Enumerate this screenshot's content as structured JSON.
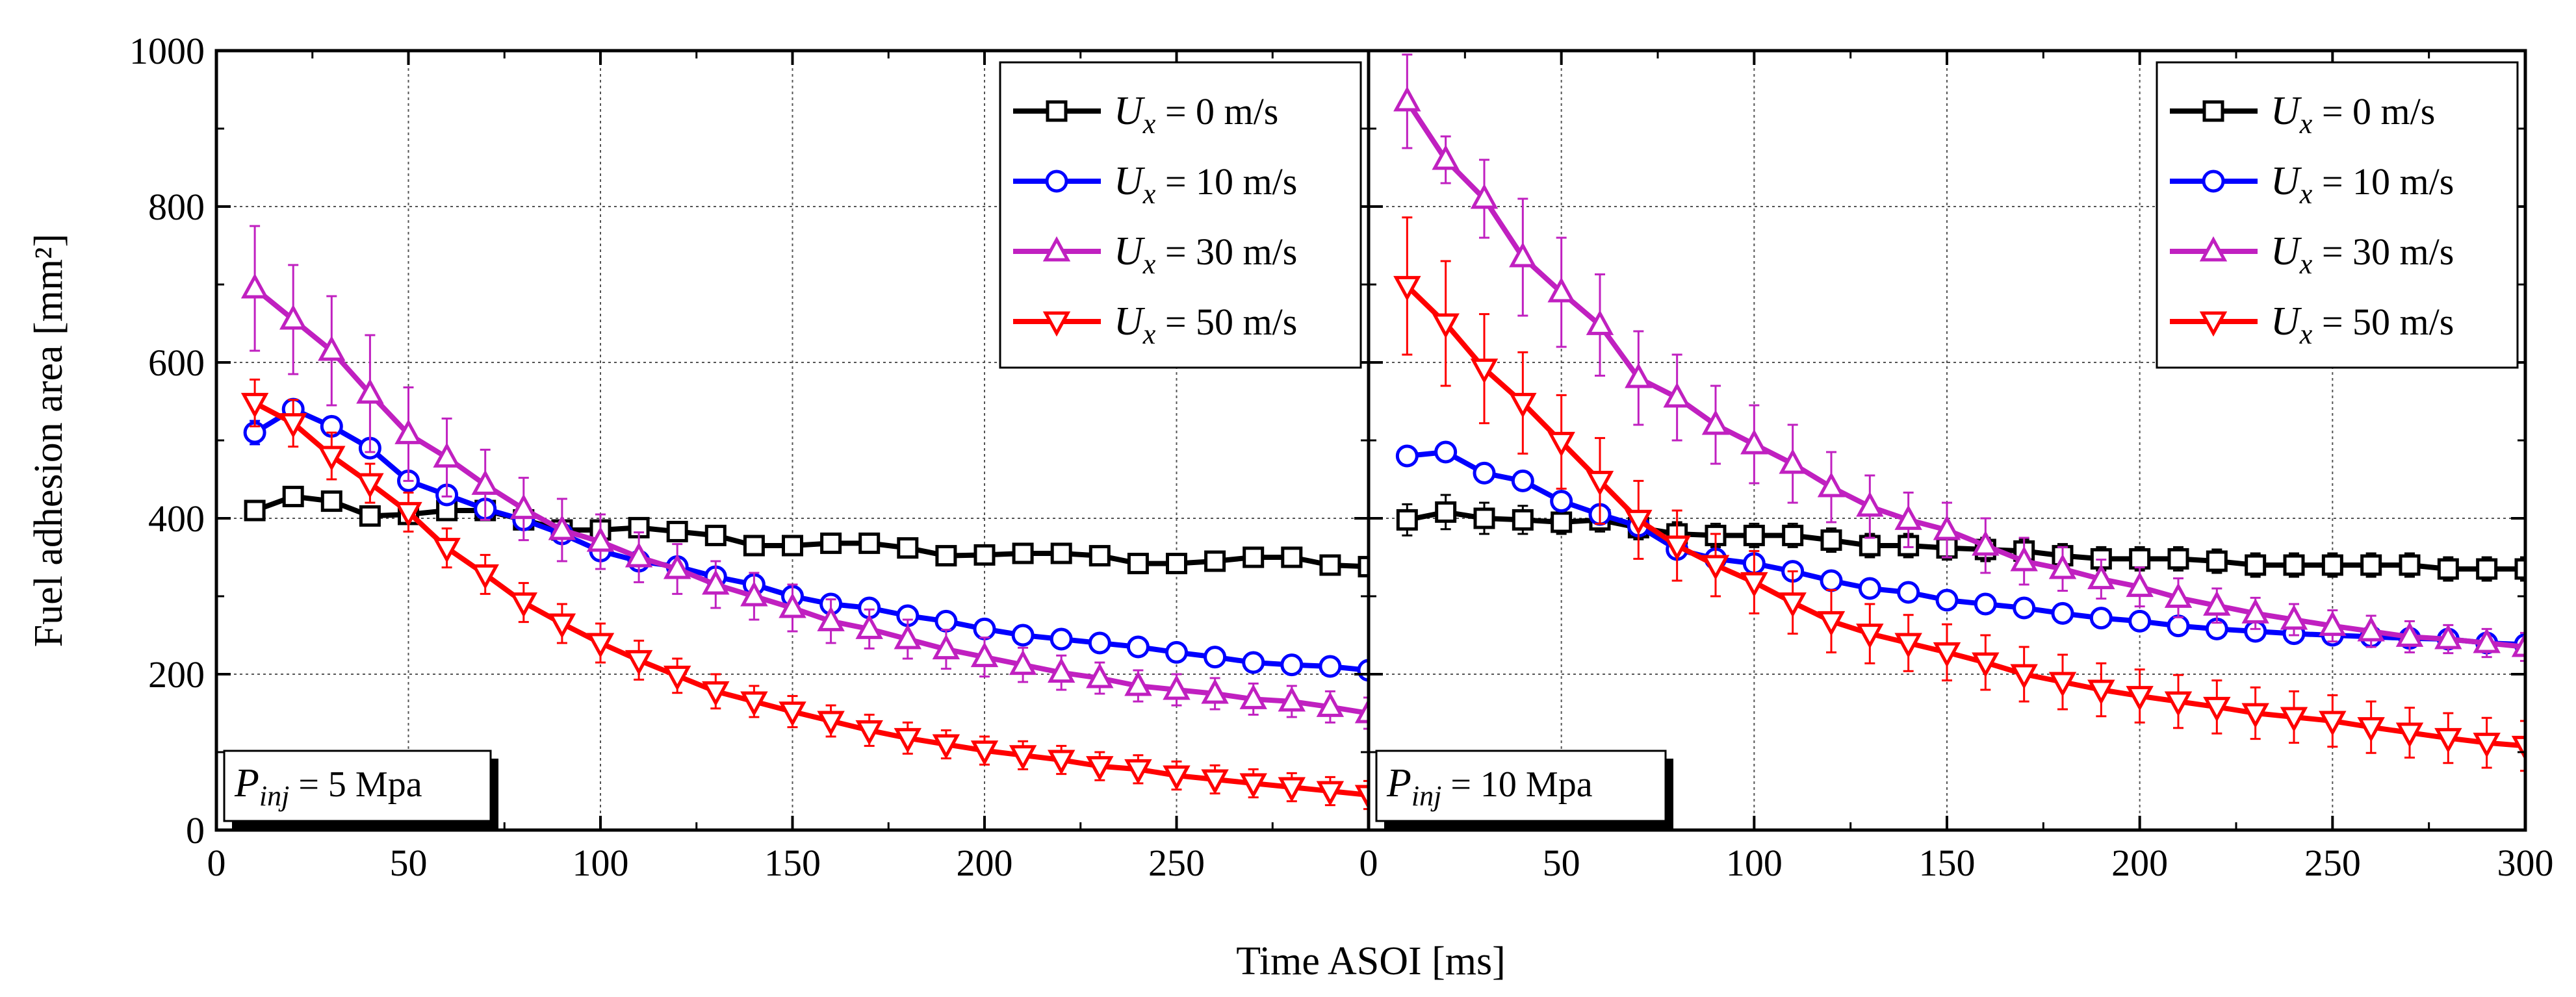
{
  "chart_data": {
    "type": "line",
    "xlabel": "Time ASOI [ms]",
    "ylabel": "Fuel adhesion area [mm²]",
    "ylim": [
      0,
      1000
    ],
    "yticks": [
      "0",
      "200",
      "400",
      "600",
      "800",
      "1000"
    ],
    "grid": true,
    "legend_placement": "top-right",
    "legend": [
      {
        "sym": "U",
        "sub": "x",
        "text": " =   0 m/s",
        "color": "#000000",
        "marker": "square"
      },
      {
        "sym": "U",
        "sub": "x",
        "text": " =  10 m/s",
        "color": "#0000ff",
        "marker": "circle"
      },
      {
        "sym": "U",
        "sub": "x",
        "text": " =  30 m/s",
        "color": "#c020c0",
        "marker": "triangle-up"
      },
      {
        "sym": "U",
        "sub": "x",
        "text": " =  50 m/s",
        "color": "#ff0000",
        "marker": "triangle-down"
      }
    ],
    "panels": [
      {
        "label": {
          "sym": "P",
          "sub": "inj",
          "text": " = 5 Mpa"
        },
        "xlim": [
          0,
          300
        ],
        "xticks": [
          "0",
          "50",
          "100",
          "150",
          "200",
          "250"
        ],
        "x": [
          10,
          20,
          30,
          40,
          50,
          60,
          70,
          80,
          90,
          100,
          110,
          120,
          130,
          140,
          150,
          160,
          170,
          180,
          190,
          200,
          210,
          220,
          230,
          240,
          250,
          260,
          270,
          280,
          290,
          300
        ],
        "series": [
          {
            "values": [
              410,
              428,
              422,
              403,
              405,
              410,
              410,
              398,
              385,
              385,
              388,
              383,
              378,
              365,
              365,
              368,
              368,
              362,
              352,
              353,
              355,
              355,
              352,
              342,
              342,
              345,
              350,
              350,
              340,
              338
            ],
            "errors": [
              10,
              10,
              12,
              10,
              8,
              8,
              10,
              8,
              8,
              8,
              8,
              8,
              12,
              8,
              8,
              8,
              8,
              10,
              6,
              6,
              6,
              6,
              6,
              6,
              6,
              6,
              8,
              8,
              8,
              8
            ]
          },
          {
            "values": [
              510,
              540,
              518,
              490,
              448,
              430,
              412,
              398,
              380,
              358,
              345,
              338,
              325,
              315,
              300,
              290,
              285,
              275,
              268,
              258,
              250,
              245,
              240,
              235,
              228,
              222,
              215,
              212,
              210,
              205
            ],
            "errors": [
              15,
              10,
              12,
              10,
              8,
              8,
              8,
              8,
              8,
              8,
              8,
              8,
              8,
              6,
              6,
              6,
              6,
              6,
              6,
              6,
              6,
              6,
              6,
              6,
              6,
              6,
              6,
              6,
              6,
              6
            ]
          },
          {
            "values": [
              695,
              655,
              615,
              560,
              508,
              478,
              443,
              412,
              385,
              370,
              350,
              335,
              315,
              300,
              285,
              268,
              258,
              245,
              232,
              222,
              212,
              202,
              195,
              185,
              180,
              175,
              168,
              165,
              158,
              150
            ],
            "errors": [
              80,
              70,
              70,
              75,
              60,
              50,
              45,
              40,
              40,
              35,
              32,
              32,
              30,
              30,
              30,
              28,
              25,
              25,
              25,
              25,
              22,
              22,
              20,
              20,
              20,
              20,
              20,
              20,
              20,
              20
            ]
          },
          {
            "values": [
              548,
              522,
              480,
              445,
              408,
              362,
              328,
              292,
              265,
              240,
              218,
              198,
              178,
              165,
              152,
              140,
              128,
              118,
              110,
              102,
              96,
              90,
              82,
              78,
              70,
              65,
              60,
              55,
              50,
              45
            ],
            "errors": [
              30,
              30,
              30,
              25,
              25,
              25,
              25,
              25,
              25,
              25,
              25,
              22,
              22,
              20,
              20,
              20,
              20,
              20,
              18,
              18,
              18,
              18,
              18,
              18,
              18,
              18,
              18,
              18,
              18,
              18
            ]
          }
        ]
      },
      {
        "label": {
          "sym": "P",
          "sub": "inj",
          "text": " = 10 Mpa"
        },
        "xlim": [
          0,
          300
        ],
        "xticks": [
          "0",
          "50",
          "100",
          "150",
          "200",
          "250",
          "300"
        ],
        "x": [
          10,
          20,
          30,
          40,
          50,
          60,
          70,
          80,
          90,
          100,
          110,
          120,
          130,
          140,
          150,
          160,
          170,
          180,
          190,
          200,
          210,
          220,
          230,
          240,
          250,
          260,
          270,
          280,
          290,
          300
        ],
        "series": [
          {
            "values": [
              398,
              408,
              400,
              398,
              395,
              398,
              388,
              380,
              378,
              378,
              378,
              372,
              365,
              365,
              362,
              360,
              358,
              352,
              348,
              348,
              348,
              345,
              340,
              340,
              340,
              340,
              340,
              335,
              335,
              335
            ],
            "errors": [
              20,
              22,
              20,
              18,
              15,
              15,
              15,
              15,
              15,
              15,
              15,
              15,
              15,
              15,
              15,
              15,
              15,
              15,
              15,
              15,
              15,
              15,
              15,
              15,
              15,
              15,
              15,
              15,
              15,
              15
            ]
          },
          {
            "values": [
              480,
              485,
              458,
              448,
              422,
              405,
              390,
              360,
              348,
              342,
              332,
              320,
              310,
              305,
              295,
              290,
              285,
              278,
              272,
              268,
              262,
              258,
              255,
              252,
              250,
              248,
              246,
              245,
              240,
              238
            ],
            "errors": [
              10,
              10,
              10,
              8,
              8,
              8,
              8,
              8,
              8,
              8,
              8,
              8,
              8,
              8,
              8,
              8,
              8,
              8,
              8,
              8,
              8,
              8,
              8,
              8,
              8,
              8,
              8,
              8,
              8,
              8
            ]
          },
          {
            "values": [
              935,
              860,
              810,
              735,
              690,
              648,
              580,
              555,
              520,
              495,
              470,
              440,
              415,
              398,
              385,
              365,
              345,
              335,
              322,
              312,
              298,
              288,
              278,
              270,
              262,
              255,
              248,
              245,
              240,
              235
            ],
            "errors": [
              60,
              30,
              50,
              75,
              70,
              65,
              60,
              55,
              50,
              50,
              50,
              45,
              40,
              35,
              35,
              35,
              30,
              28,
              25,
              25,
              25,
              22,
              20,
              20,
              20,
              20,
              20,
              18,
              18,
              18
            ]
          },
          {
            "values": [
              698,
              650,
              592,
              548,
              498,
              448,
              398,
              365,
              340,
              318,
              292,
              268,
              252,
              240,
              228,
              215,
              200,
              190,
              180,
              172,
              165,
              158,
              150,
              145,
              140,
              132,
              125,
              118,
              112,
              108
            ],
            "errors": [
              88,
              80,
              70,
              65,
              60,
              55,
              50,
              45,
              40,
              40,
              40,
              40,
              38,
              36,
              36,
              35,
              35,
              35,
              34,
              34,
              34,
              34,
              33,
              33,
              33,
              33,
              32,
              32,
              32,
              32
            ]
          }
        ]
      }
    ]
  }
}
